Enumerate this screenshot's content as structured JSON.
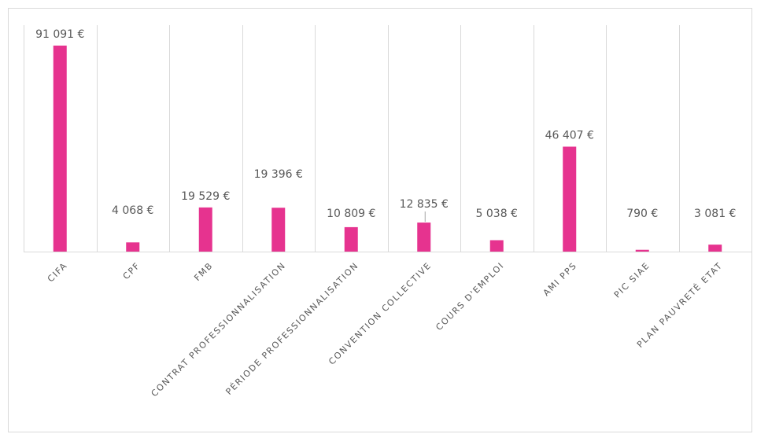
{
  "chart_data": {
    "type": "bar",
    "title": "",
    "xlabel": "",
    "ylabel": "",
    "ylim": [
      0,
      95000
    ],
    "grid": "vertical category separators",
    "legend": "none",
    "bar_color": "#e6338f",
    "categories": [
      "CIFA",
      "CPF",
      "FMB",
      "CONTRAT PROFESSIONNALISATION",
      "PÉRIODE PROFESSIONNALISATION",
      "CONVENTION COLLECTIVE",
      "COURS D'EMPLOI",
      "AMI PPS",
      "PIC SIAE",
      "PLAN PAUVRETÉ ETAT"
    ],
    "values": [
      91091,
      4068,
      19529,
      19396,
      10809,
      12835,
      5038,
      46407,
      790,
      3081
    ],
    "data_labels": [
      "91 091 €",
      "4 068 €",
      "19 529 €",
      "19 396 €",
      "10 809 €",
      "12 835 €",
      "5 038 €",
      "46 407 €",
      "790 €",
      "3 081 €"
    ]
  }
}
